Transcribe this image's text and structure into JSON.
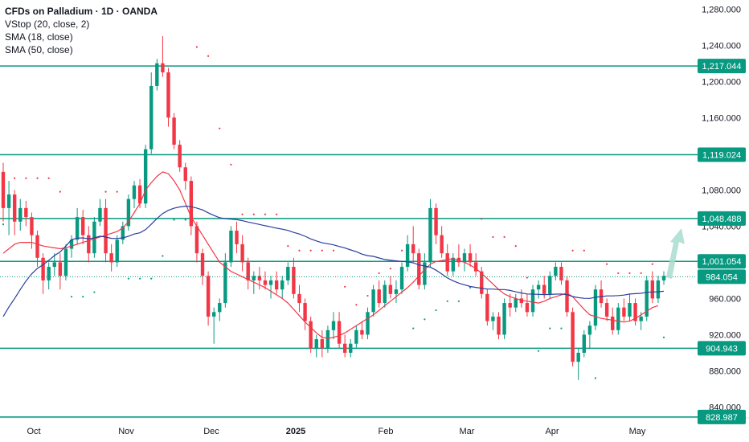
{
  "legend": {
    "title": "CFDs on Palladium · 1D · OANDA",
    "indicators": [
      "VStop (20, close, 2)",
      "SMA (18, close)",
      "SMA (50, close)"
    ]
  },
  "colors": {
    "up": "#089981",
    "down": "#f23645",
    "sma18": "#f23645",
    "sma50": "#2a3f9d",
    "hline": "#089981",
    "last_price": "#089981",
    "arrow": "#a8dccf"
  },
  "chart_data": {
    "type": "candlestick",
    "title": "CFDs on Palladium · 1D · OANDA",
    "y_axis": {
      "min": 828,
      "max": 1290,
      "ticks": [
        "1,280.000",
        "1,240.000",
        "1,200.000",
        "1,160.000",
        "1,080.000",
        "1,040.000",
        "960.000",
        "920.000",
        "880.000",
        "840.000"
      ],
      "position": "right"
    },
    "x_axis": {
      "labels": [
        "Oct",
        "Nov",
        "Dec",
        "2025",
        "Feb",
        "Mar",
        "Apr",
        "May"
      ]
    },
    "horizontal_levels": [
      "1,217.044",
      "1,119.024",
      "1,048.488",
      "1,001.054",
      "904.943",
      "828.987"
    ],
    "last_price": "984.054",
    "candles_ohlc": [
      [
        1100,
        1110,
        1045,
        1060
      ],
      [
        1060,
        1090,
        1030,
        1075
      ],
      [
        1075,
        1080,
        1030,
        1045
      ],
      [
        1045,
        1070,
        1035,
        1060
      ],
      [
        1060,
        1068,
        1040,
        1050
      ],
      [
        1050,
        1055,
        1015,
        1030
      ],
      [
        1030,
        1035,
        995,
        1005
      ],
      [
        1005,
        1010,
        965,
        980
      ],
      [
        980,
        1000,
        970,
        995
      ],
      [
        995,
        1010,
        985,
        1000
      ],
      [
        1000,
        1010,
        970,
        985
      ],
      [
        985,
        1020,
        980,
        1015
      ],
      [
        1015,
        1030,
        1005,
        1025
      ],
      [
        1025,
        1060,
        1020,
        1050
      ],
      [
        1050,
        1058,
        1020,
        1030
      ],
      [
        1030,
        1040,
        1000,
        1010
      ],
      [
        1010,
        1050,
        1005,
        1045
      ],
      [
        1045,
        1070,
        1040,
        1060
      ],
      [
        1060,
        1070,
        1000,
        1010
      ],
      [
        1010,
        1020,
        990,
        1000
      ],
      [
        1000,
        1030,
        995,
        1025
      ],
      [
        1025,
        1045,
        1020,
        1040
      ],
      [
        1040,
        1075,
        1035,
        1070
      ],
      [
        1070,
        1090,
        1060,
        1085
      ],
      [
        1085,
        1092,
        1060,
        1065
      ],
      [
        1065,
        1130,
        1060,
        1125
      ],
      [
        1125,
        1210,
        1120,
        1195
      ],
      [
        1195,
        1225,
        1190,
        1220
      ],
      [
        1220,
        1250,
        1205,
        1210
      ],
      [
        1210,
        1215,
        1150,
        1160
      ],
      [
        1160,
        1165,
        1125,
        1130
      ],
      [
        1130,
        1135,
        1100,
        1105
      ],
      [
        1105,
        1110,
        1080,
        1090
      ],
      [
        1090,
        1095,
        1030,
        1040
      ],
      [
        1040,
        1045,
        1000,
        1010
      ],
      [
        1010,
        1015,
        975,
        985
      ],
      [
        985,
        990,
        930,
        940
      ],
      [
        940,
        950,
        910,
        945
      ],
      [
        945,
        960,
        935,
        955
      ],
      [
        955,
        1010,
        950,
        1000
      ],
      [
        1000,
        1040,
        995,
        1035
      ],
      [
        1035,
        1045,
        1010,
        1020
      ],
      [
        1020,
        1030,
        990,
        1000
      ],
      [
        1000,
        1005,
        970,
        980
      ],
      [
        980,
        990,
        965,
        985
      ],
      [
        985,
        995,
        970,
        980
      ],
      [
        980,
        990,
        970,
        975
      ],
      [
        975,
        985,
        960,
        980
      ],
      [
        980,
        990,
        965,
        970
      ],
      [
        970,
        985,
        960,
        980
      ],
      [
        980,
        1000,
        975,
        995
      ],
      [
        995,
        1005,
        960,
        965
      ],
      [
        965,
        975,
        945,
        955
      ],
      [
        955,
        960,
        925,
        935
      ],
      [
        935,
        940,
        900,
        905
      ],
      [
        905,
        920,
        895,
        915
      ],
      [
        915,
        925,
        895,
        905
      ],
      [
        905,
        930,
        900,
        925
      ],
      [
        925,
        945,
        915,
        935
      ],
      [
        935,
        945,
        905,
        910
      ],
      [
        910,
        920,
        895,
        900
      ],
      [
        900,
        915,
        895,
        910
      ],
      [
        910,
        930,
        905,
        925
      ],
      [
        925,
        935,
        915,
        920
      ],
      [
        920,
        950,
        915,
        945
      ],
      [
        945,
        975,
        940,
        970
      ],
      [
        970,
        980,
        950,
        955
      ],
      [
        955,
        980,
        950,
        975
      ],
      [
        975,
        985,
        960,
        965
      ],
      [
        965,
        980,
        955,
        970
      ],
      [
        970,
        1000,
        965,
        995
      ],
      [
        995,
        1030,
        990,
        1020
      ],
      [
        1020,
        1040,
        1000,
        1010
      ],
      [
        1010,
        1015,
        970,
        975
      ],
      [
        975,
        1010,
        970,
        1000
      ],
      [
        1000,
        1070,
        995,
        1060
      ],
      [
        1060,
        1065,
        1020,
        1030
      ],
      [
        1030,
        1040,
        1005,
        1010
      ],
      [
        1010,
        1020,
        985,
        990
      ],
      [
        990,
        1010,
        985,
        1005
      ],
      [
        1005,
        1020,
        995,
        1000
      ],
      [
        1000,
        1015,
        990,
        1010
      ],
      [
        1010,
        1020,
        995,
        1000
      ],
      [
        1000,
        1010,
        985,
        990
      ],
      [
        990,
        995,
        960,
        965
      ],
      [
        965,
        970,
        930,
        935
      ],
      [
        935,
        945,
        925,
        940
      ],
      [
        940,
        945,
        915,
        920
      ],
      [
        920,
        960,
        915,
        955
      ],
      [
        955,
        965,
        940,
        950
      ],
      [
        950,
        965,
        945,
        960
      ],
      [
        960,
        970,
        950,
        955
      ],
      [
        955,
        965,
        940,
        945
      ],
      [
        945,
        975,
        940,
        970
      ],
      [
        970,
        980,
        960,
        975
      ],
      [
        975,
        985,
        960,
        965
      ],
      [
        965,
        990,
        960,
        985
      ],
      [
        985,
        1000,
        980,
        995
      ],
      [
        995,
        1000,
        975,
        980
      ],
      [
        980,
        985,
        940,
        945
      ],
      [
        945,
        950,
        885,
        890
      ],
      [
        890,
        905,
        870,
        900
      ],
      [
        900,
        925,
        895,
        920
      ],
      [
        920,
        935,
        905,
        930
      ],
      [
        930,
        975,
        925,
        970
      ],
      [
        970,
        980,
        950,
        955
      ],
      [
        955,
        960,
        935,
        940
      ],
      [
        940,
        950,
        920,
        925
      ],
      [
        925,
        955,
        920,
        950
      ],
      [
        950,
        960,
        935,
        940
      ],
      [
        940,
        965,
        935,
        955
      ],
      [
        955,
        960,
        930,
        935
      ],
      [
        935,
        945,
        925,
        940
      ],
      [
        940,
        985,
        935,
        980
      ],
      [
        980,
        990,
        955,
        960
      ],
      [
        960,
        985,
        955,
        980
      ],
      [
        980,
        990,
        975,
        985
      ]
    ],
    "sma18": [
      1010,
      1015,
      1020,
      1022,
      1022,
      1022,
      1020,
      1018,
      1017,
      1016,
      1015,
      1016,
      1018,
      1020,
      1022,
      1024,
      1026,
      1028,
      1030,
      1032,
      1034,
      1038,
      1045,
      1055,
      1065,
      1080,
      1088,
      1095,
      1100,
      1098,
      1090,
      1080,
      1065,
      1050,
      1040,
      1030,
      1020,
      1010,
      1000,
      995,
      990,
      987,
      984,
      981,
      978,
      975,
      972,
      968,
      964,
      960,
      955,
      948,
      941,
      934,
      928,
      922,
      917,
      916,
      917,
      919,
      922,
      926,
      930,
      934,
      938,
      942,
      947,
      952,
      957,
      962,
      967,
      972,
      978,
      985,
      992,
      998,
      1001,
      1002,
      1003,
      1004,
      1002,
      1000,
      997,
      993,
      988,
      982,
      976,
      970,
      965,
      962,
      960,
      958,
      957,
      956,
      955,
      957,
      960,
      962,
      964,
      966,
      962,
      955,
      948,
      942,
      940,
      938,
      937,
      936,
      935,
      934,
      935,
      938,
      942,
      946,
      950,
      952
    ]
  }
}
